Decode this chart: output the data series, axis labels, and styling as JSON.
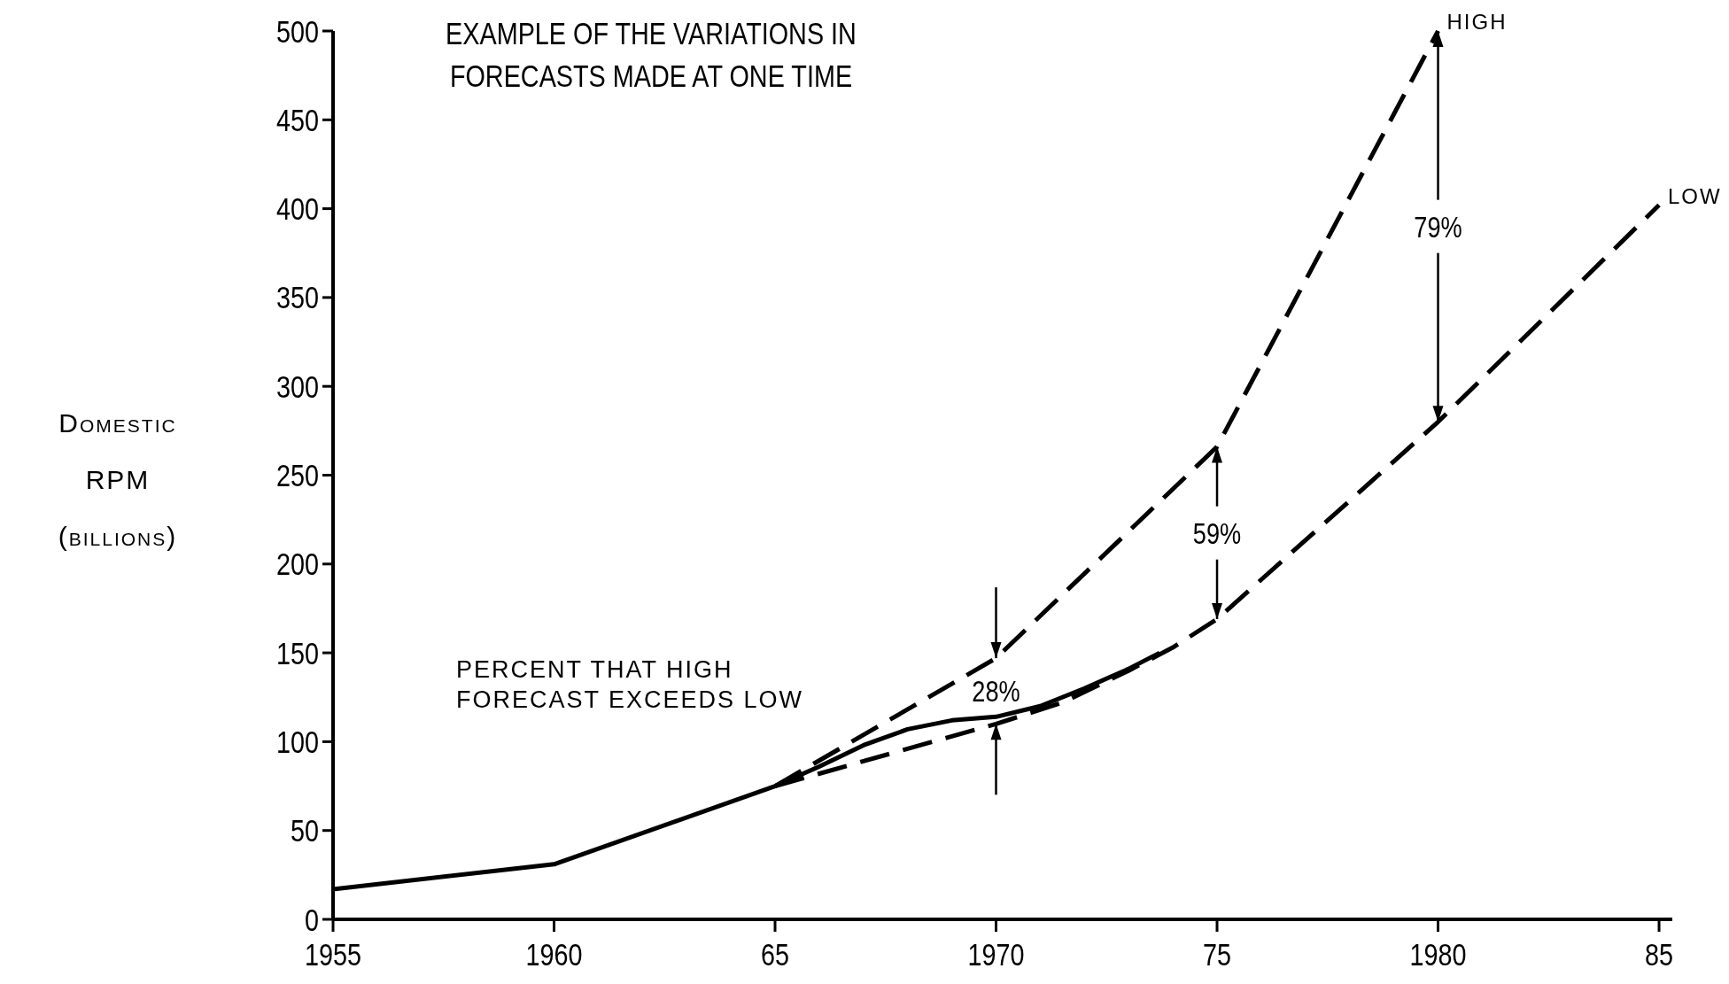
{
  "chart_data": {
    "type": "line",
    "title": "EXAMPLE OF THE VARIATIONS IN FORECASTS MADE AT ONE TIME",
    "ylabel": "Domestic RPM (billions)",
    "xlim": [
      1955,
      1985.3
    ],
    "ylim": [
      0,
      500
    ],
    "xticks": [
      1955,
      1960,
      {
        "value": 1965,
        "label": "65"
      },
      1970,
      {
        "value": 1975,
        "label": "75"
      },
      1980,
      {
        "value": 1985,
        "label": "85"
      }
    ],
    "yticks": [
      0,
      50,
      100,
      150,
      200,
      250,
      300,
      350,
      400,
      450,
      500
    ],
    "grid": false,
    "marker": "none",
    "series": [
      {
        "color": "#000000",
        "line_style": "solid",
        "x": [
          1955,
          1960,
          1965,
          1966,
          1967,
          1968,
          1969,
          1970,
          1971,
          1972,
          1973,
          1973.7
        ],
        "values": [
          17,
          31,
          75,
          86,
          98,
          107,
          112,
          114,
          120,
          130,
          141,
          150
        ]
      },
      {
        "name": "HIGH",
        "color": "#000000",
        "line_style": "dashed",
        "x": [
          1965,
          1970,
          1975,
          1980
        ],
        "values": [
          75,
          147,
          266,
          500
        ]
      },
      {
        "name": "LOW",
        "color": "#000000",
        "line_style": "dashed",
        "x": [
          1965,
          1970,
          1971.5,
          1973,
          1974,
          1975,
          1980,
          1985
        ],
        "values": [
          75,
          110,
          122,
          140,
          153,
          169,
          280,
          402
        ]
      }
    ],
    "annotations": [
      "PERCENT THAT HIGH FORECAST EXCEEDS LOW",
      {
        "text": "28%",
        "x": 1970,
        "y": 147
      },
      {
        "text": "59%",
        "x": 1975,
        "y": 266
      },
      {
        "text": "79%",
        "x": 1980,
        "y": 500
      }
    ]
  }
}
